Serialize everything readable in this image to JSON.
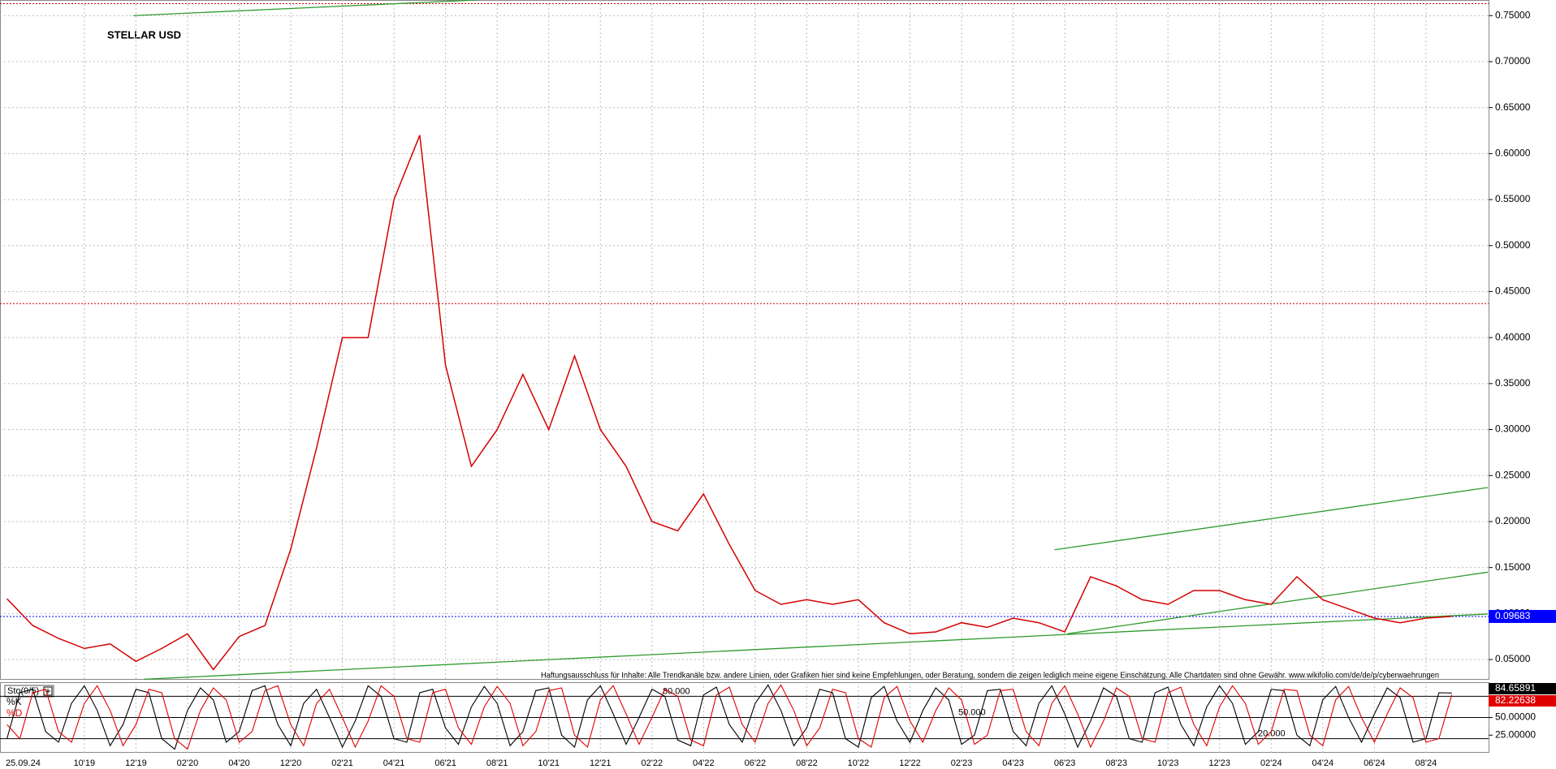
{
  "chart_data": [
    {
      "type": "line",
      "title": "STELLAR USD",
      "date": "25.09.24",
      "disclaimer": "Haftungsausschluss für Inhalte: Alle Trendkanäle bzw. andere Linien, oder Grafiken hier sind keine Empfehlungen, oder Beratung, sondern die zeigen lediglich meine eigene Einschätzung. Alle Chartdaten sind ohne Gewähr.  www.wikifolio.com/de/de/p/cyberwaehrungen",
      "categories": [
        null,
        null,
        null,
        "10'19",
        null,
        "12'19",
        null,
        "02'20",
        null,
        "04'20",
        null,
        "12'20",
        null,
        "02'21",
        null,
        "04'21",
        null,
        "06'21",
        null,
        "08'21",
        null,
        "10'21",
        null,
        "12'21",
        null,
        "02'22",
        null,
        "04'22",
        null,
        "06'22",
        null,
        "08'22",
        null,
        "10'22",
        null,
        "12'22",
        null,
        "02'23",
        null,
        "04'23",
        null,
        "06'23",
        null,
        "08'23",
        null,
        "10'23",
        null,
        "12'23",
        null,
        "02'24",
        null,
        "04'24",
        null,
        "06'24",
        null,
        "08'24",
        null
      ],
      "series": [
        {
          "color": "#d40000",
          "values": [
            0.116,
            0.087,
            0.073,
            0.062,
            0.067,
            0.048,
            0.062,
            0.078,
            0.039,
            0.075,
            0.087,
            0.17,
            0.28,
            0.4,
            0.4,
            0.55,
            0.62,
            0.37,
            0.26,
            0.3,
            0.36,
            0.3,
            0.38,
            0.3,
            0.26,
            0.2,
            0.19,
            0.23,
            0.175,
            0.125,
            0.11,
            0.115,
            0.11,
            0.115,
            0.09,
            0.078,
            0.08,
            0.09,
            0.085,
            0.095,
            0.09,
            0.08,
            0.14,
            0.13,
            0.115,
            0.11,
            0.125,
            0.125,
            0.115,
            0.11,
            0.14,
            0.115,
            0.105,
            0.095,
            0.09,
            0.095,
            0.09683
          ]
        }
      ],
      "ylim": [
        0.028,
        0.767
      ],
      "yticks": [
        {
          "value": 0.05,
          "label": "0.05000"
        },
        {
          "value": 0.1,
          "label": "0.10000"
        },
        {
          "value": 0.15,
          "label": "0.15000"
        },
        {
          "value": 0.2,
          "label": "0.20000"
        },
        {
          "value": 0.25,
          "label": "0.25000"
        },
        {
          "value": 0.3,
          "label": "0.30000"
        },
        {
          "value": 0.35,
          "label": "0.35000"
        },
        {
          "value": 0.4,
          "label": "0.40000"
        },
        {
          "value": 0.45,
          "label": "0.45000"
        },
        {
          "value": 0.5,
          "label": "0.50000"
        },
        {
          "value": 0.55,
          "label": "0.55000"
        },
        {
          "value": 0.6,
          "label": "0.60000"
        },
        {
          "value": 0.65,
          "label": "0.65000"
        },
        {
          "value": 0.7,
          "label": "0.70000"
        },
        {
          "value": 0.75,
          "label": "0.75000"
        }
      ],
      "grid": true,
      "reference_lines": [
        {
          "value": 0.09683,
          "color": "#0000ff"
        },
        {
          "value": 0.763,
          "color": "#cc0000"
        },
        {
          "value": 0.437,
          "color": "#cc0000"
        }
      ],
      "trendlines": [
        {
          "from": [
            4.9,
            0.75
          ],
          "to": [
            18.2,
            0.767
          ],
          "color": "#2e9a2e"
        },
        {
          "from": [
            5.3,
            0.0285
          ],
          "to": [
            57.4,
            0.0995
          ],
          "color": "#2e9a2e"
        },
        {
          "from": [
            40.6,
            0.1693
          ],
          "to": [
            57.4,
            0.237
          ],
          "color": "#2e9a2e"
        },
        {
          "from": [
            41.1,
            0.078
          ],
          "to": [
            57.4,
            0.145
          ],
          "color": "#2e9a2e"
        }
      ]
    },
    {
      "type": "line",
      "label": "Sto(9/5)",
      "series": [
        {
          "name": "%K",
          "color": "#000000",
          "values": [
            20,
            85,
            90,
            30,
            15,
            70,
            95,
            60,
            10,
            40,
            90,
            85,
            20,
            5,
            60,
            92,
            75,
            15,
            30,
            88,
            95,
            40,
            10,
            70,
            90,
            50,
            8,
            45,
            95,
            80,
            20,
            15,
            85,
            90,
            35,
            12,
            65,
            94,
            70,
            10,
            30,
            88,
            92,
            25,
            8,
            75,
            95,
            55,
            12,
            50,
            90,
            80,
            18,
            10,
            82,
            93,
            40,
            15,
            70,
            96,
            60,
            10,
            35,
            90,
            85,
            20,
            8,
            78,
            94,
            45,
            15,
            60,
            92,
            75,
            12,
            25,
            88,
            90,
            30,
            10,
            70,
            95,
            55,
            8,
            45,
            92,
            80,
            20,
            15,
            85,
            93,
            40,
            10,
            65,
            95,
            70,
            12,
            30,
            90,
            88,
            25,
            10,
            75,
            94,
            50,
            15,
            55,
            92,
            78,
            15,
            20,
            85,
            84.65891
          ]
        },
        {
          "name": "%D",
          "color": "#e00000",
          "values": [
            40,
            20,
            85,
            90,
            30,
            15,
            70,
            95,
            60,
            10,
            40,
            90,
            85,
            20,
            5,
            60,
            92,
            75,
            15,
            30,
            88,
            95,
            40,
            10,
            70,
            90,
            50,
            8,
            45,
            95,
            80,
            20,
            15,
            85,
            90,
            35,
            12,
            65,
            94,
            70,
            10,
            30,
            88,
            92,
            25,
            8,
            75,
            95,
            55,
            12,
            50,
            90,
            80,
            18,
            10,
            82,
            93,
            40,
            15,
            70,
            96,
            60,
            10,
            35,
            90,
            85,
            20,
            8,
            78,
            94,
            45,
            15,
            60,
            92,
            75,
            12,
            25,
            88,
            90,
            30,
            10,
            70,
            95,
            55,
            8,
            45,
            92,
            80,
            20,
            15,
            85,
            93,
            40,
            10,
            65,
            95,
            70,
            12,
            30,
            90,
            88,
            25,
            10,
            75,
            94,
            50,
            15,
            55,
            92,
            78,
            15,
            20,
            82.22638
          ]
        }
      ],
      "ylim": [
        0,
        100
      ],
      "yticks": [
        {
          "value": 50,
          "label": "50.00000"
        },
        {
          "value": 25,
          "label": "25.00000"
        }
      ],
      "levels": [
        {
          "value": 80,
          "label": "80.000"
        },
        {
          "value": 50,
          "label": "50.000"
        },
        {
          "value": 20,
          "label": "20.000"
        }
      ]
    }
  ]
}
